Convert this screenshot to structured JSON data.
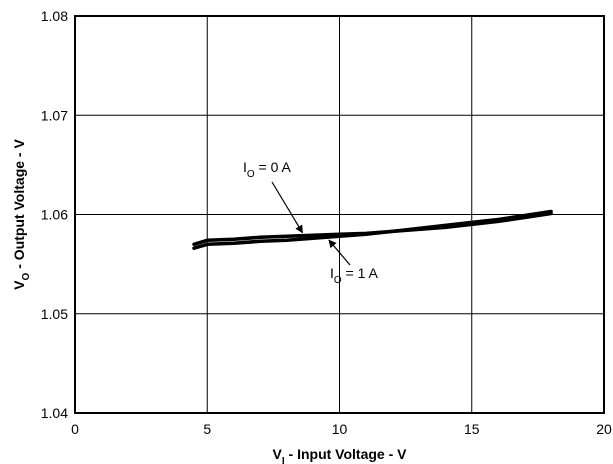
{
  "chart_data": {
    "type": "line",
    "title": "",
    "xlabel": {
      "main": "V",
      "sub": "I",
      "rest": " - Input Voltage - V"
    },
    "ylabel": {
      "main": "V",
      "sub": "O",
      "rest": " - Output Voltage - V"
    },
    "xlim": [
      0,
      20
    ],
    "ylim": [
      1.04,
      1.08
    ],
    "x_ticks": [
      "0",
      "5",
      "10",
      "15",
      "20"
    ],
    "y_ticks": [
      "1.04",
      "1.05",
      "1.06",
      "1.07",
      "1.08"
    ],
    "grid": true,
    "series": [
      {
        "name": "I_O = 0 A",
        "x": [
          4.5,
          5,
          6,
          7,
          8,
          9,
          10,
          11,
          12,
          13,
          14,
          15,
          16,
          17,
          18
        ],
        "y": [
          1.057,
          1.0574,
          1.0575,
          1.0577,
          1.0578,
          1.0579,
          1.058,
          1.0581,
          1.0583,
          1.0585,
          1.0587,
          1.059,
          1.0593,
          1.0597,
          1.0601
        ]
      },
      {
        "name": "I_O = 1 A",
        "x": [
          4.5,
          5,
          6,
          7,
          8,
          9,
          10,
          11,
          12,
          13,
          14,
          15,
          16,
          17,
          18
        ],
        "y": [
          1.0566,
          1.057,
          1.0571,
          1.0573,
          1.0574,
          1.0576,
          1.0578,
          1.058,
          1.0583,
          1.0586,
          1.0589,
          1.0592,
          1.0595,
          1.0599,
          1.0603
        ]
      }
    ],
    "annotations": [
      {
        "main": "I",
        "sub": "O",
        "rest": " = 0 A",
        "series": 0,
        "arrow_x": 8.6
      },
      {
        "main": "I",
        "sub": "O",
        "rest": " = 1 A",
        "series": 1,
        "arrow_x": 9.6
      }
    ]
  }
}
